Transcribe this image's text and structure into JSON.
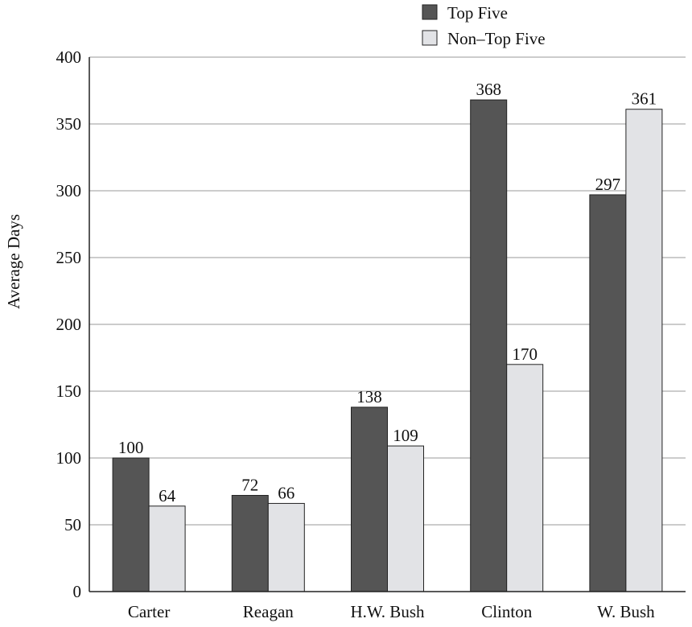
{
  "chart_data": {
    "type": "bar",
    "title": "",
    "xlabel": "",
    "ylabel": "Average Days",
    "ylim": [
      0,
      400
    ],
    "yticks": [
      0,
      50,
      100,
      150,
      200,
      250,
      300,
      350,
      400
    ],
    "grid": true,
    "legend_position": "top-right",
    "categories": [
      "Carter",
      "Reagan",
      "H.W. Bush",
      "Clinton",
      "W. Bush"
    ],
    "series": [
      {
        "name": "Top Five",
        "color": "#555555",
        "values": [
          100,
          72,
          138,
          368,
          297
        ]
      },
      {
        "name": "Non–Top Five",
        "color": "#e2e3e6",
        "values": [
          64,
          66,
          109,
          170,
          361
        ]
      }
    ]
  }
}
